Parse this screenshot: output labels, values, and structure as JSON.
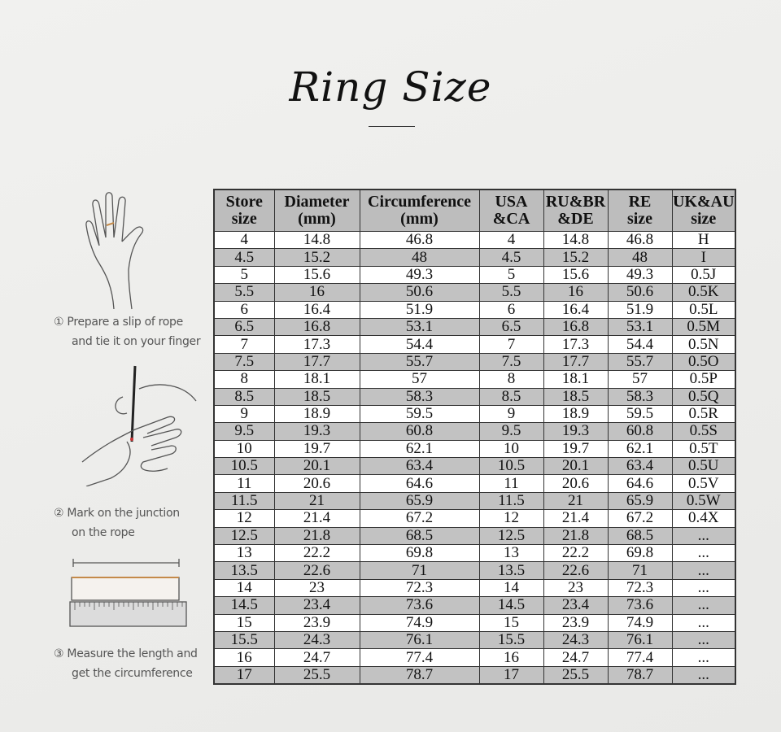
{
  "title": "Ring Size",
  "steps": [
    {
      "number": "①",
      "line1": "Prepare a slip of rope",
      "line2": "and tie it on your finger"
    },
    {
      "number": "②",
      "line1": "Mark on the junction",
      "line2": "on the rope"
    },
    {
      "number": "③",
      "line1": "Measure the length and",
      "line2": "get the circumference"
    }
  ],
  "table": {
    "headers": [
      [
        "Store",
        "size"
      ],
      [
        "Diameter",
        "(mm)"
      ],
      [
        "Circumference",
        "(mm)"
      ],
      [
        "USA",
        "&CA"
      ],
      [
        "RU&BR",
        "&DE"
      ],
      [
        "RE",
        "size"
      ],
      [
        "UK&AU",
        "size"
      ]
    ],
    "rows": [
      [
        "4",
        "14.8",
        "46.8",
        "4",
        "14.8",
        "46.8",
        "H"
      ],
      [
        "4.5",
        "15.2",
        "48",
        "4.5",
        "15.2",
        "48",
        "I"
      ],
      [
        "5",
        "15.6",
        "49.3",
        "5",
        "15.6",
        "49.3",
        "0.5J"
      ],
      [
        "5.5",
        "16",
        "50.6",
        "5.5",
        "16",
        "50.6",
        "0.5K"
      ],
      [
        "6",
        "16.4",
        "51.9",
        "6",
        "16.4",
        "51.9",
        "0.5L"
      ],
      [
        "6.5",
        "16.8",
        "53.1",
        "6.5",
        "16.8",
        "53.1",
        "0.5M"
      ],
      [
        "7",
        "17.3",
        "54.4",
        "7",
        "17.3",
        "54.4",
        "0.5N"
      ],
      [
        "7.5",
        "17.7",
        "55.7",
        "7.5",
        "17.7",
        "55.7",
        "0.5O"
      ],
      [
        "8",
        "18.1",
        "57",
        "8",
        "18.1",
        "57",
        "0.5P"
      ],
      [
        "8.5",
        "18.5",
        "58.3",
        "8.5",
        "18.5",
        "58.3",
        "0.5Q"
      ],
      [
        "9",
        "18.9",
        "59.5",
        "9",
        "18.9",
        "59.5",
        "0.5R"
      ],
      [
        "9.5",
        "19.3",
        "60.8",
        "9.5",
        "19.3",
        "60.8",
        "0.5S"
      ],
      [
        "10",
        "19.7",
        "62.1",
        "10",
        "19.7",
        "62.1",
        "0.5T"
      ],
      [
        "10.5",
        "20.1",
        "63.4",
        "10.5",
        "20.1",
        "63.4",
        "0.5U"
      ],
      [
        "11",
        "20.6",
        "64.6",
        "11",
        "20.6",
        "64.6",
        "0.5V"
      ],
      [
        "11.5",
        "21",
        "65.9",
        "11.5",
        "21",
        "65.9",
        "0.5W"
      ],
      [
        "12",
        "21.4",
        "67.2",
        "12",
        "21.4",
        "67.2",
        "0.4X"
      ],
      [
        "12.5",
        "21.8",
        "68.5",
        "12.5",
        "21.8",
        "68.5",
        "..."
      ],
      [
        "13",
        "22.2",
        "69.8",
        "13",
        "22.2",
        "69.8",
        "..."
      ],
      [
        "13.5",
        "22.6",
        "71",
        "13.5",
        "22.6",
        "71",
        "..."
      ],
      [
        "14",
        "23",
        "72.3",
        "14",
        "23",
        "72.3",
        "..."
      ],
      [
        "14.5",
        "23.4",
        "73.6",
        "14.5",
        "23.4",
        "73.6",
        "..."
      ],
      [
        "15",
        "23.9",
        "74.9",
        "15",
        "23.9",
        "74.9",
        "..."
      ],
      [
        "15.5",
        "24.3",
        "76.1",
        "15.5",
        "24.3",
        "76.1",
        "..."
      ],
      [
        "16",
        "24.7",
        "77.4",
        "16",
        "24.7",
        "77.4",
        "..."
      ],
      [
        "17",
        "25.5",
        "78.7",
        "17",
        "25.5",
        "78.7",
        "..."
      ]
    ]
  }
}
